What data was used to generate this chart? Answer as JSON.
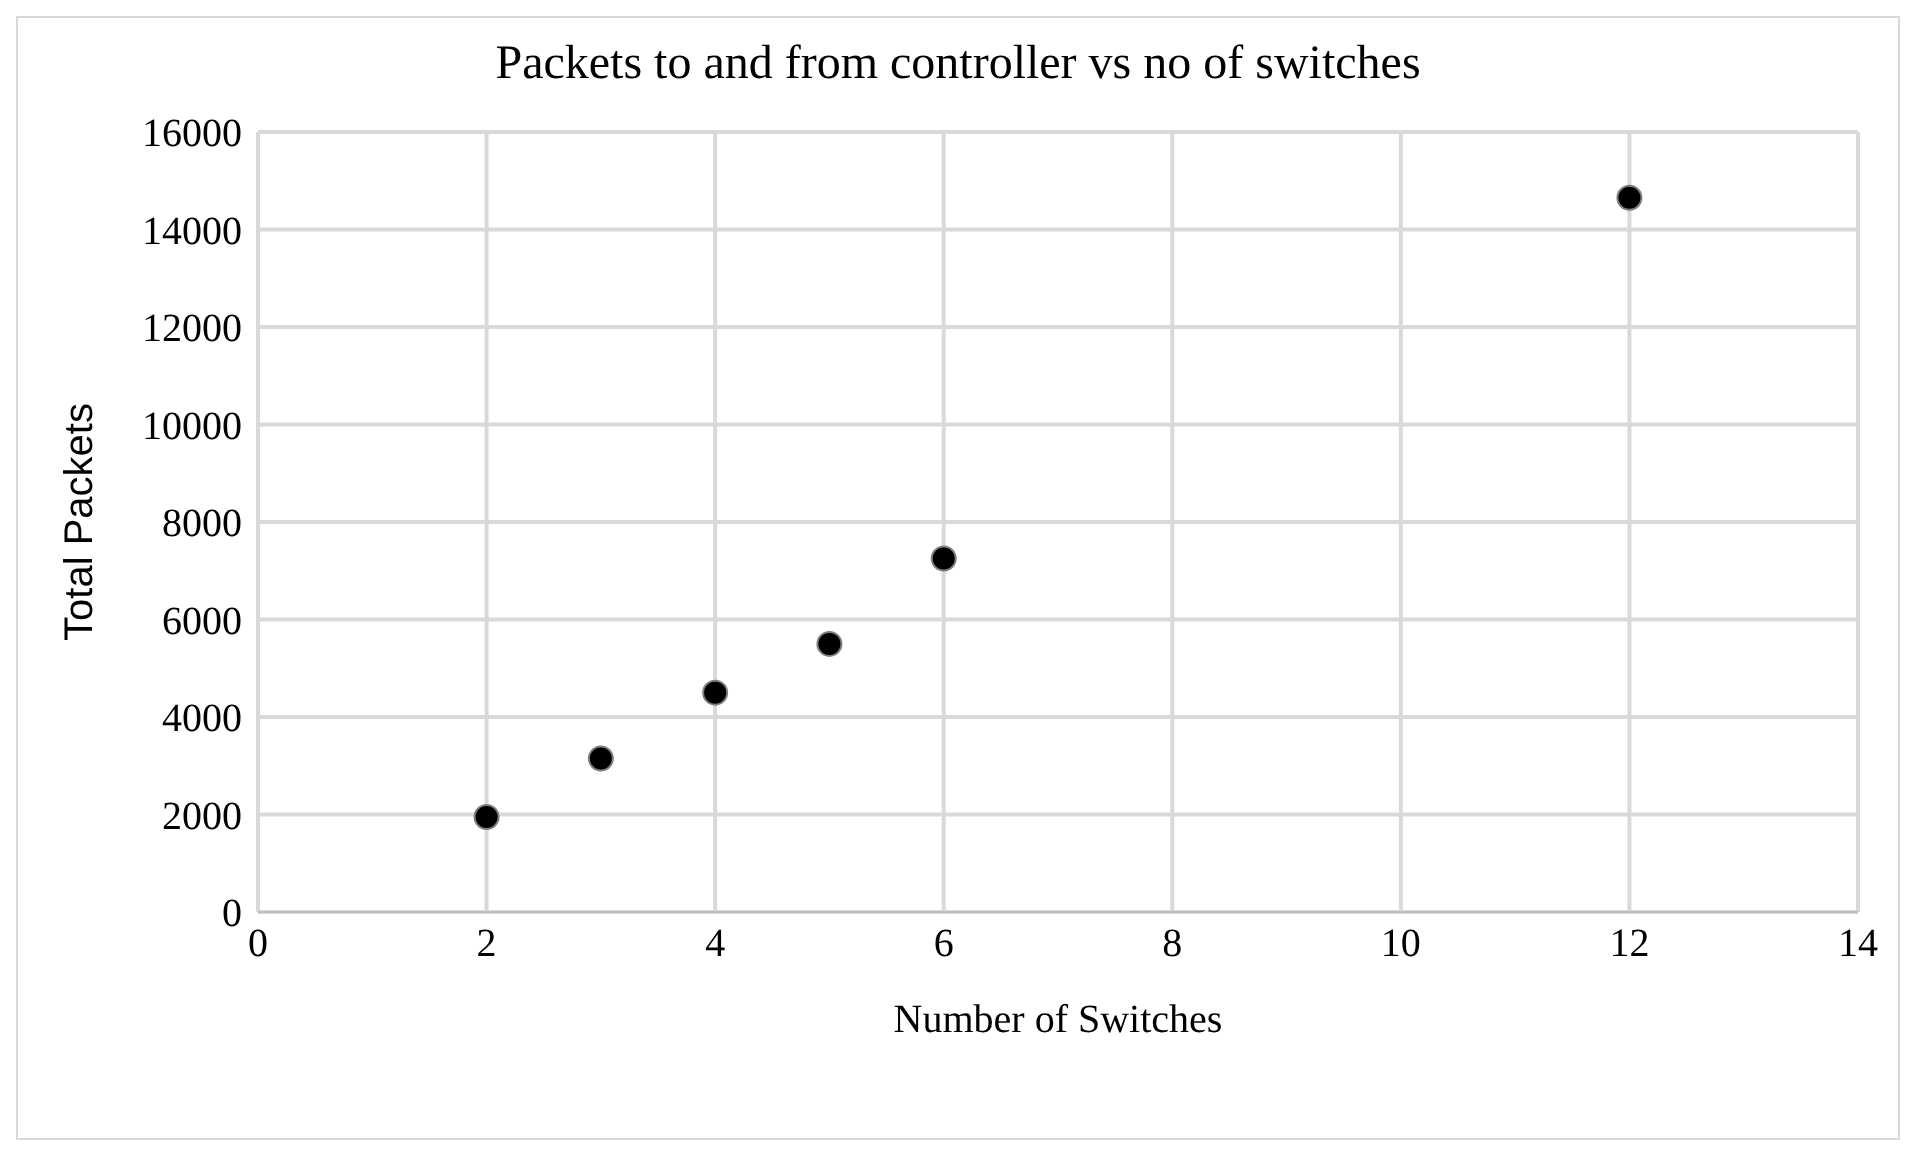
{
  "chart_data": {
    "type": "scatter",
    "title": "Packets to and from controller vs no of switches",
    "xlabel": "Number of Switches",
    "ylabel": "Total Packets",
    "x": [
      2,
      3,
      4,
      5,
      6,
      12
    ],
    "series": [
      {
        "color": "#000000",
        "values": [
          1950,
          3150,
          4500,
          5500,
          7250,
          14650
        ]
      }
    ],
    "xlim": [
      0,
      14
    ],
    "xticks": [
      0,
      2,
      4,
      6,
      8,
      10,
      12,
      14
    ],
    "ylim": [
      0,
      16000
    ],
    "yticks": [
      0,
      2000,
      4000,
      6000,
      8000,
      10000,
      12000,
      14000,
      16000
    ],
    "grid": true,
    "marker": "circle",
    "legend": false
  }
}
